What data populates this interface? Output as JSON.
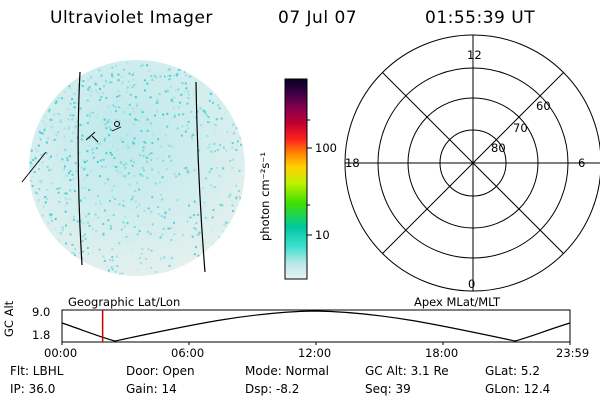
{
  "header": {
    "title": "Ultraviolet Imager",
    "date": "07 Jul 07",
    "time": "01:55:39 UT"
  },
  "colorbar": {
    "label": "photon cm⁻²s⁻¹",
    "ticks": [
      "100",
      "10"
    ]
  },
  "polar": {
    "mlt_labels": {
      "top": "12",
      "left": "18",
      "right": "6",
      "bottom": "0"
    },
    "lat_labels": [
      "60",
      "70",
      "80"
    ]
  },
  "grid_labels": {
    "geographic": "Geographic Lat/Lon",
    "apex": "Apex MLat/MLT"
  },
  "altitude_plot": {
    "axis_title": "GC Alt",
    "y_ticks": [
      "9.0",
      "1.8"
    ],
    "x_ticks": [
      "00:00",
      "06:00",
      "12:00",
      "18:00",
      "23:59"
    ],
    "current_time_fraction": 0.08,
    "marker_color": "#cc0000"
  },
  "info": {
    "filter": "Flt: LBHL",
    "ip": "IP: 36.0",
    "door": "Door: Open",
    "gain": "Gain: 14",
    "mode": "Mode: Normal",
    "dsp": "Dsp:   -8.2",
    "gc_alt": "GC Alt: 3.1 Re",
    "seq": "Seq: 39",
    "glat": "GLat:   5.2",
    "glon": "GLon:  12.4"
  }
}
